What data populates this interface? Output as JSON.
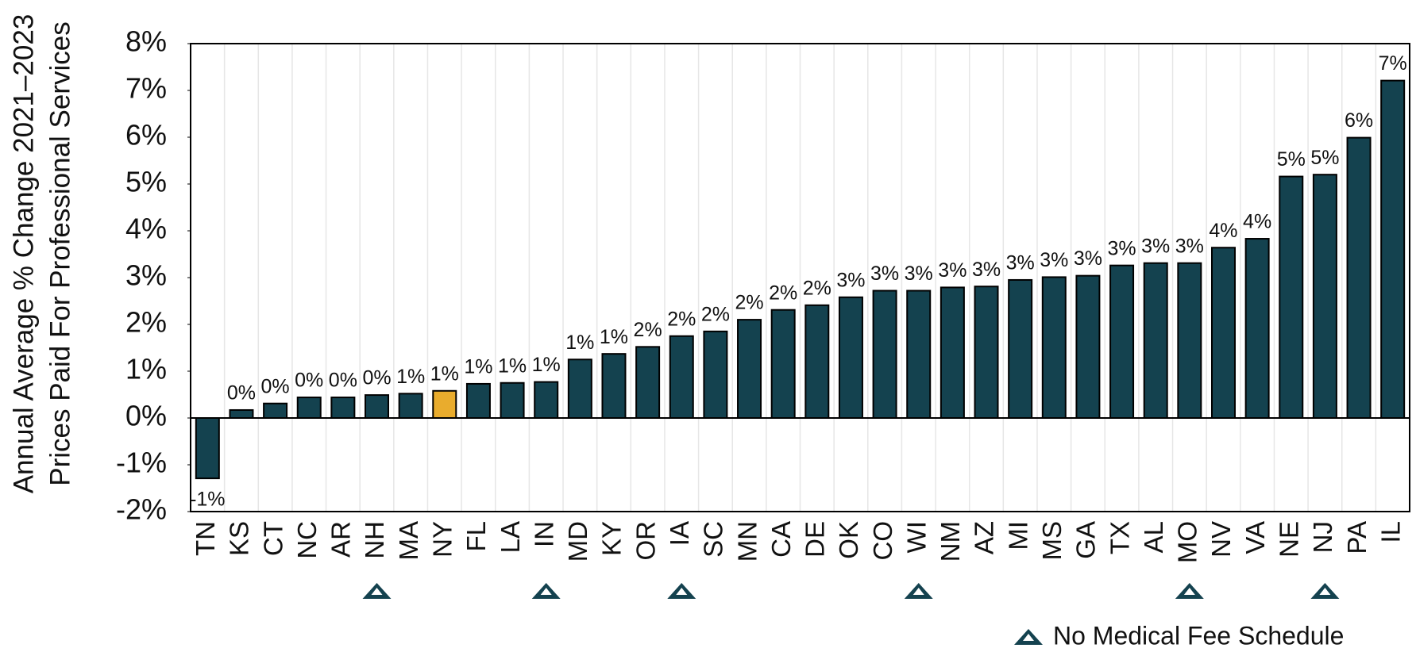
{
  "chart_data": {
    "type": "bar",
    "y_axis_label": [
      "Annual Average % Change 2021–2023",
      "Prices Paid For Professional Services"
    ],
    "categories": [
      "TN",
      "KS",
      "CT",
      "NC",
      "AR",
      "NH",
      "MA",
      "NY",
      "FL",
      "LA",
      "IN",
      "MD",
      "KY",
      "OR",
      "IA",
      "SC",
      "MN",
      "CA",
      "DE",
      "OK",
      "CO",
      "WI",
      "NM",
      "AZ",
      "MI",
      "MS",
      "GA",
      "TX",
      "AL",
      "MO",
      "NV",
      "VA",
      "NE",
      "NJ",
      "PA",
      "IL"
    ],
    "values": [
      -1.29,
      0.17,
      0.31,
      0.44,
      0.44,
      0.49,
      0.52,
      0.58,
      0.73,
      0.75,
      0.77,
      1.25,
      1.37,
      1.52,
      1.75,
      1.85,
      2.1,
      2.31,
      2.41,
      2.58,
      2.72,
      2.72,
      2.79,
      2.81,
      2.95,
      3.01,
      3.04,
      3.26,
      3.31,
      3.31,
      3.64,
      3.83,
      5.16,
      5.2,
      5.99,
      7.21
    ],
    "value_labels": [
      "-1%",
      "0%",
      "0%",
      "0%",
      "0%",
      "0%",
      "1%",
      "1%",
      "1%",
      "1%",
      "1%",
      "1%",
      "1%",
      "2%",
      "2%",
      "2%",
      "2%",
      "2%",
      "2%",
      "3%",
      "3%",
      "3%",
      "3%",
      "3%",
      "3%",
      "3%",
      "3%",
      "3%",
      "3%",
      "3%",
      "4%",
      "4%",
      "5%",
      "5%",
      "6%",
      "7%"
    ],
    "colors": [
      "#14424f",
      "#14424f",
      "#14424f",
      "#14424f",
      "#14424f",
      "#14424f",
      "#14424f",
      "#e9ac2d",
      "#14424f",
      "#14424f",
      "#14424f",
      "#14424f",
      "#14424f",
      "#14424f",
      "#14424f",
      "#14424f",
      "#14424f",
      "#14424f",
      "#14424f",
      "#14424f",
      "#14424f",
      "#14424f",
      "#14424f",
      "#14424f",
      "#14424f",
      "#14424f",
      "#14424f",
      "#14424f",
      "#14424f",
      "#14424f",
      "#14424f",
      "#14424f",
      "#14424f",
      "#14424f",
      "#14424f",
      "#14424f"
    ],
    "no_fee_schedule": [
      false,
      false,
      false,
      false,
      false,
      true,
      false,
      false,
      false,
      false,
      true,
      false,
      false,
      false,
      true,
      false,
      false,
      false,
      false,
      false,
      false,
      true,
      false,
      false,
      false,
      false,
      false,
      false,
      false,
      true,
      false,
      false,
      false,
      true,
      false,
      false
    ],
    "legend_label": "No Medical Fee Schedule",
    "ylim": [
      -2,
      8
    ],
    "yticks": [
      {
        "value": -2,
        "label": "-2%"
      },
      {
        "value": -1,
        "label": "-1%"
      },
      {
        "value": 0,
        "label": "0%"
      },
      {
        "value": 1,
        "label": "1%"
      },
      {
        "value": 2,
        "label": "2%"
      },
      {
        "value": 3,
        "label": "3%"
      },
      {
        "value": 4,
        "label": "4%"
      },
      {
        "value": 5,
        "label": "5%"
      },
      {
        "value": 6,
        "label": "6%"
      },
      {
        "value": 7,
        "label": "7%"
      },
      {
        "value": 8,
        "label": "8%"
      }
    ]
  }
}
